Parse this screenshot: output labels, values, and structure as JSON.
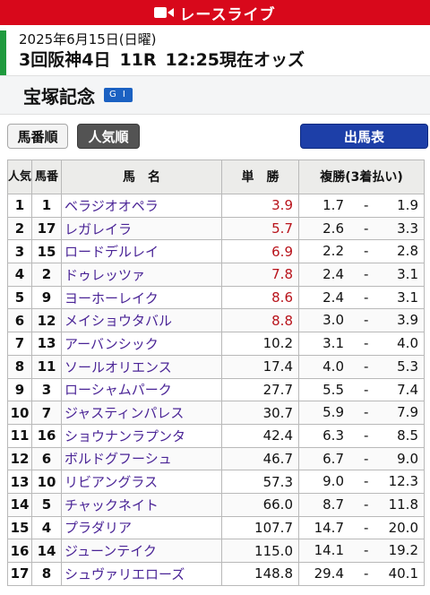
{
  "live_bar": {
    "label": "レースライブ"
  },
  "race": {
    "date": "2025年6月15日(日曜)",
    "meeting": "3回阪神4日",
    "race_no": "11R",
    "odds_time": "12:25現在オッズ",
    "name": "宝塚記念",
    "grade": "G I"
  },
  "buttons": {
    "umaban": "馬番順",
    "ninki": "人気順",
    "shutuba": "出馬表"
  },
  "table": {
    "headers": {
      "rank": "人気",
      "num": "馬番",
      "name": "馬　名",
      "win": "単　勝",
      "place": "複勝(3着払い)"
    },
    "rows": [
      {
        "rank": "1",
        "num": "1",
        "name": "ベラジオオペラ",
        "win": "3.9",
        "place_min": "1.7",
        "sep": "-",
        "place_max": "1.9",
        "hot": true
      },
      {
        "rank": "2",
        "num": "17",
        "name": "レガレイラ",
        "win": "5.7",
        "place_min": "2.6",
        "sep": "-",
        "place_max": "3.3",
        "hot": true
      },
      {
        "rank": "3",
        "num": "15",
        "name": "ロードデルレイ",
        "win": "6.9",
        "place_min": "2.2",
        "sep": "-",
        "place_max": "2.8",
        "hot": true
      },
      {
        "rank": "4",
        "num": "2",
        "name": "ドゥレッツァ",
        "win": "7.8",
        "place_min": "2.4",
        "sep": "-",
        "place_max": "3.1",
        "hot": true
      },
      {
        "rank": "5",
        "num": "9",
        "name": "ヨーホーレイク",
        "win": "8.6",
        "place_min": "2.4",
        "sep": "-",
        "place_max": "3.1",
        "hot": true
      },
      {
        "rank": "6",
        "num": "12",
        "name": "メイショウタバル",
        "win": "8.8",
        "place_min": "3.0",
        "sep": "-",
        "place_max": "3.9",
        "hot": true
      },
      {
        "rank": "7",
        "num": "13",
        "name": "アーバンシック",
        "win": "10.2",
        "place_min": "3.1",
        "sep": "-",
        "place_max": "4.0",
        "hot": false
      },
      {
        "rank": "8",
        "num": "11",
        "name": "ソールオリエンス",
        "win": "17.4",
        "place_min": "4.0",
        "sep": "-",
        "place_max": "5.3",
        "hot": false
      },
      {
        "rank": "9",
        "num": "3",
        "name": "ローシャムパーク",
        "win": "27.7",
        "place_min": "5.5",
        "sep": "-",
        "place_max": "7.4",
        "hot": false
      },
      {
        "rank": "10",
        "num": "7",
        "name": "ジャスティンパレス",
        "win": "30.7",
        "place_min": "5.9",
        "sep": "-",
        "place_max": "7.9",
        "hot": false
      },
      {
        "rank": "11",
        "num": "16",
        "name": "ショウナンラプンタ",
        "win": "42.4",
        "place_min": "6.3",
        "sep": "-",
        "place_max": "8.5",
        "hot": false
      },
      {
        "rank": "12",
        "num": "6",
        "name": "ボルドグフーシュ",
        "win": "46.7",
        "place_min": "6.7",
        "sep": "-",
        "place_max": "9.0",
        "hot": false
      },
      {
        "rank": "13",
        "num": "10",
        "name": "リビアングラス",
        "win": "57.3",
        "place_min": "9.0",
        "sep": "-",
        "place_max": "12.3",
        "hot": false
      },
      {
        "rank": "14",
        "num": "5",
        "name": "チャックネイト",
        "win": "66.0",
        "place_min": "8.7",
        "sep": "-",
        "place_max": "11.8",
        "hot": false
      },
      {
        "rank": "15",
        "num": "4",
        "name": "プラダリア",
        "win": "107.7",
        "place_min": "14.7",
        "sep": "-",
        "place_max": "20.0",
        "hot": false
      },
      {
        "rank": "16",
        "num": "14",
        "name": "ジューンテイク",
        "win": "115.0",
        "place_min": "14.1",
        "sep": "-",
        "place_max": "19.2",
        "hot": false
      },
      {
        "rank": "17",
        "num": "8",
        "name": "シュヴァリエローズ",
        "win": "148.8",
        "place_min": "29.4",
        "sep": "-",
        "place_max": "40.1",
        "hot": false
      }
    ]
  },
  "colors": {
    "live_red": "#d8081b",
    "race_accent_green": "#1f9a3e",
    "grade_blue": "#1b61c2",
    "horse_name_purple": "#4a2496",
    "hot_odds_red": "#b8121a",
    "shutuba_blue": "#1d3fa8"
  },
  "icons": {
    "live": "video-camera-icon"
  }
}
